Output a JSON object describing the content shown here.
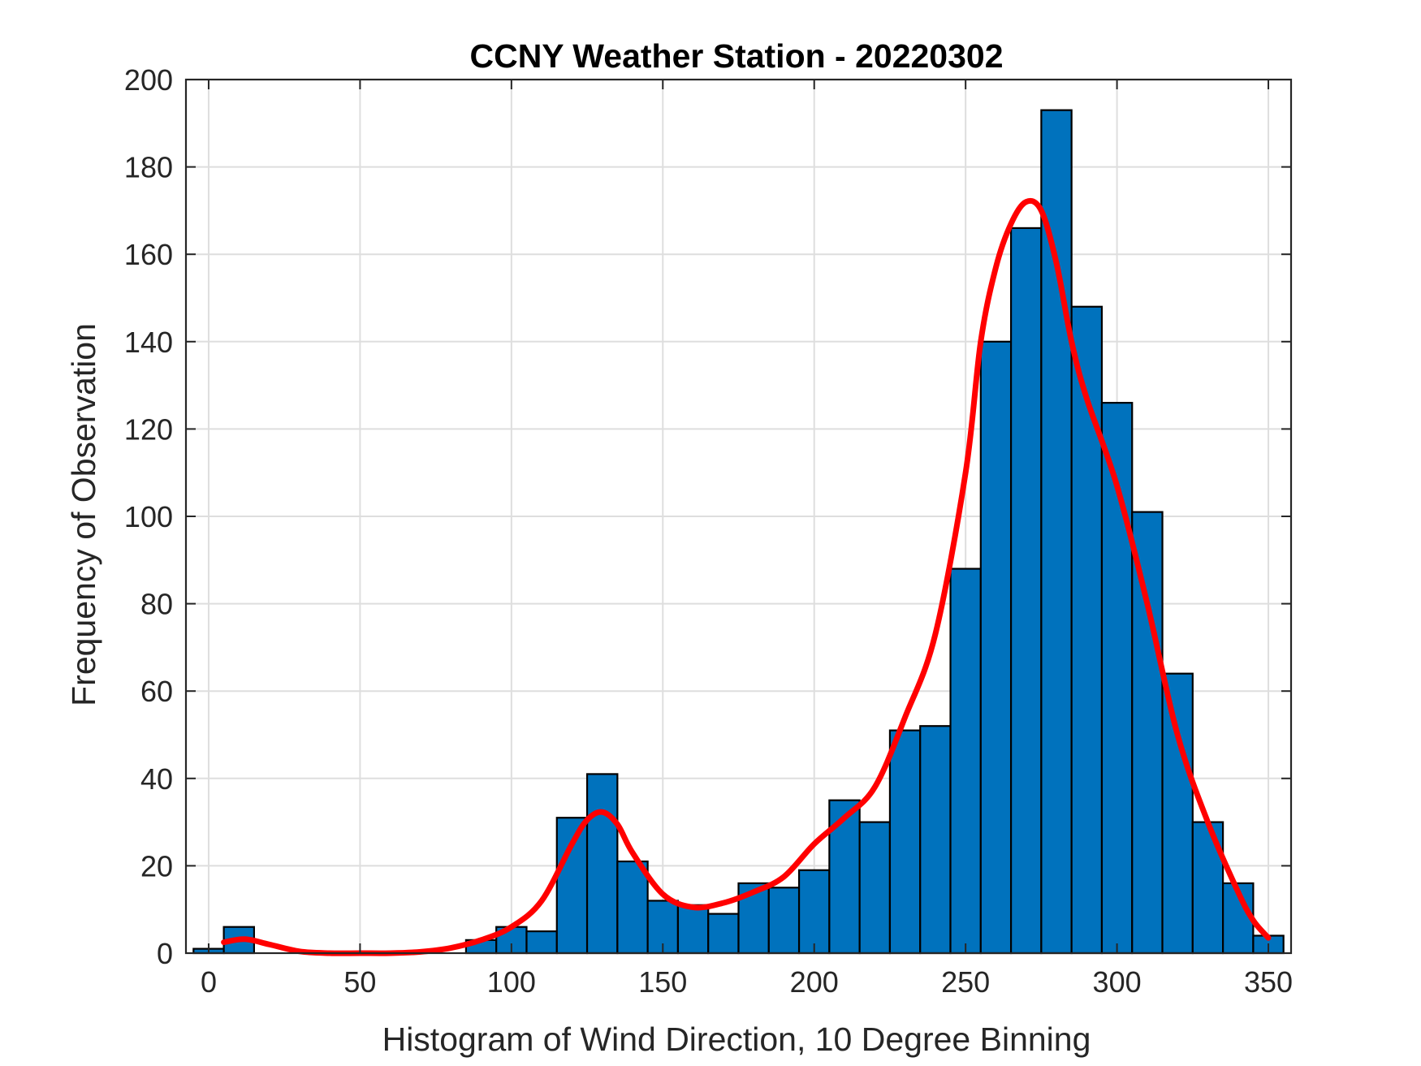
{
  "chart_data": {
    "type": "bar",
    "title": "CCNY Weather Station - 20220302",
    "xlabel": "Histogram of Wind Direction, 10 Degree Binning",
    "ylabel": "Frequency of Observation",
    "xlim": [
      -7.5,
      357.5
    ],
    "ylim": [
      0,
      200
    ],
    "xticks": [
      0,
      50,
      100,
      150,
      200,
      250,
      300,
      350
    ],
    "yticks": [
      0,
      20,
      40,
      60,
      80,
      100,
      120,
      140,
      160,
      180,
      200
    ],
    "grid": true,
    "bin_width": 10,
    "bins": [
      {
        "start": 0,
        "count": 1
      },
      {
        "start": 10,
        "count": 6
      },
      {
        "start": 20,
        "count": 0
      },
      {
        "start": 30,
        "count": 0
      },
      {
        "start": 40,
        "count": 0
      },
      {
        "start": 50,
        "count": 0
      },
      {
        "start": 60,
        "count": 0
      },
      {
        "start": 70,
        "count": 0
      },
      {
        "start": 80,
        "count": 0
      },
      {
        "start": 90,
        "count": 3
      },
      {
        "start": 100,
        "count": 6
      },
      {
        "start": 110,
        "count": 5
      },
      {
        "start": 120,
        "count": 31
      },
      {
        "start": 130,
        "count": 41
      },
      {
        "start": 140,
        "count": 21
      },
      {
        "start": 150,
        "count": 12
      },
      {
        "start": 160,
        "count": 11
      },
      {
        "start": 170,
        "count": 9
      },
      {
        "start": 180,
        "count": 16
      },
      {
        "start": 190,
        "count": 15
      },
      {
        "start": 200,
        "count": 19
      },
      {
        "start": 210,
        "count": 35
      },
      {
        "start": 220,
        "count": 30
      },
      {
        "start": 230,
        "count": 51
      },
      {
        "start": 240,
        "count": 52
      },
      {
        "start": 250,
        "count": 88
      },
      {
        "start": 260,
        "count": 140
      },
      {
        "start": 270,
        "count": 166
      },
      {
        "start": 280,
        "count": 193
      },
      {
        "start": 290,
        "count": 148
      },
      {
        "start": 300,
        "count": 126
      },
      {
        "start": 310,
        "count": 101
      },
      {
        "start": 320,
        "count": 64
      },
      {
        "start": 330,
        "count": 30
      },
      {
        "start": 340,
        "count": 16
      },
      {
        "start": 350,
        "count": 4
      }
    ],
    "fit_curve": {
      "x": [
        5,
        12,
        20,
        30,
        40,
        50,
        60,
        70,
        80,
        90,
        100,
        110,
        120,
        125,
        130,
        135,
        140,
        150,
        160,
        170,
        180,
        190,
        200,
        210,
        220,
        230,
        240,
        250,
        255,
        260,
        265,
        270,
        275,
        280,
        285,
        290,
        300,
        310,
        320,
        330,
        340,
        345,
        350
      ],
      "y": [
        2.5,
        3.2,
        2,
        0.4,
        0,
        0,
        0,
        0.3,
        1.2,
        3,
        6,
        12,
        25,
        30.5,
        32.3,
        29.5,
        23,
        13.5,
        10.5,
        11.5,
        14,
        17.5,
        25,
        31,
        38,
        54,
        73,
        110,
        140,
        157,
        167,
        172,
        170,
        158,
        140,
        127,
        107,
        80,
        50,
        30,
        14,
        7.5,
        3.5
      ]
    },
    "colors": {
      "bar_fill": "#0072BD",
      "bar_edge": "#000000",
      "curve": "#FF0000",
      "grid": "#dedede",
      "axis": "#262626"
    }
  }
}
